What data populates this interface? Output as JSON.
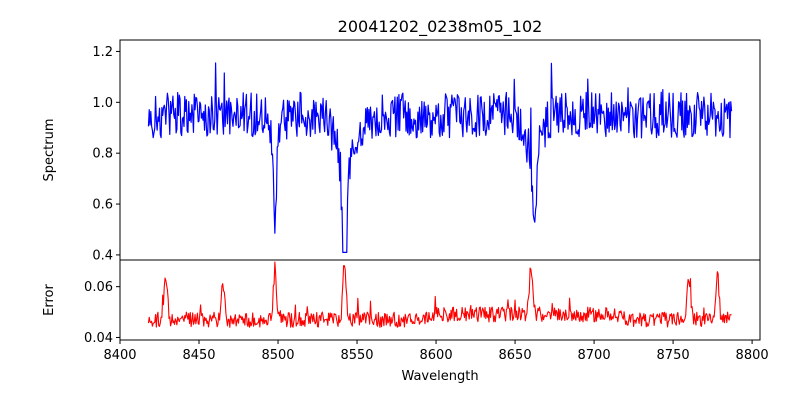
{
  "chart_data": [
    {
      "type": "line",
      "title": "20041202_0238m05_102",
      "xlabel": "",
      "ylabel": "Spectrum",
      "xlim": [
        8400,
        8805
      ],
      "ylim": [
        0.38,
        1.245
      ],
      "yticks": [
        "0.4",
        "0.6",
        "0.8",
        "1.0",
        "1.2"
      ],
      "series": [
        {
          "color": "#0000ff",
          "x_range": [
            8418,
            8787
          ],
          "continuum": 0.95,
          "noise_amplitude": 0.09,
          "absorption_lines": [
            {
              "center": 8498.2,
              "depth": 0.35,
              "width": 0.9
            },
            {
              "center": 8542.2,
              "depth": 0.52,
              "width": 1.6
            },
            {
              "center": 8662.3,
              "depth": 0.38,
              "width": 1.4
            }
          ]
        }
      ]
    },
    {
      "type": "line",
      "title": "",
      "xlabel": "Wavelength",
      "ylabel": "Error",
      "xlim": [
        8400,
        8805
      ],
      "ylim": [
        0.039,
        0.0705
      ],
      "xticks": [
        "8400",
        "8450",
        "8500",
        "8550",
        "8600",
        "8650",
        "8700",
        "8750",
        "8800"
      ],
      "yticks": [
        "0.04",
        "0.06"
      ],
      "series": [
        {
          "color": "#ff0000",
          "x_range": [
            8418,
            8787
          ],
          "baseline": 0.047,
          "noise_amplitude": 0.003,
          "peaks": [
            {
              "center": 8429,
              "height": 0.065
            },
            {
              "center": 8465,
              "height": 0.063
            },
            {
              "center": 8498,
              "height": 0.066
            },
            {
              "center": 8542,
              "height": 0.069
            },
            {
              "center": 8660,
              "height": 0.066
            },
            {
              "center": 8760,
              "height": 0.064
            },
            {
              "center": 8778,
              "height": 0.065
            }
          ]
        }
      ]
    }
  ]
}
